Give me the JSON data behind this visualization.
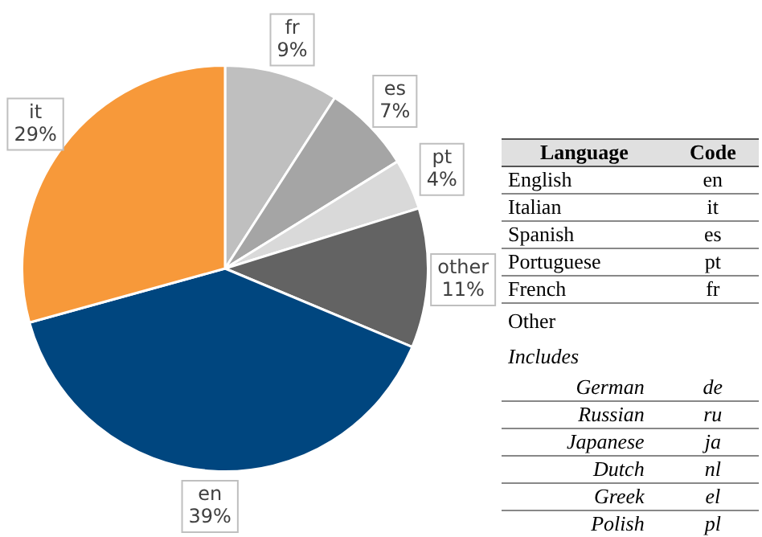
{
  "chart_data": [
    {
      "type": "pie",
      "categories": [
        "fr",
        "es",
        "pt",
        "other",
        "en",
        "it"
      ],
      "values": [
        9,
        7,
        4,
        11,
        39,
        29
      ],
      "value_labels": [
        "9%",
        "7%",
        "4%",
        "11%",
        "39%",
        "29%"
      ],
      "colors": [
        "#bfbfbf",
        "#a5a5a5",
        "#d9d9d9",
        "#636363",
        "#00467f",
        "#f7993a"
      ]
    },
    {
      "type": "other",
      "categories": [
        "Language",
        "Code"
      ],
      "cell_labels": [
        [
          "English",
          "en"
        ],
        [
          "Italian",
          "it"
        ],
        [
          "Spanish",
          "es"
        ],
        [
          "Portuguese",
          "pt"
        ],
        [
          "French",
          "fr"
        ],
        [
          "Other",
          null
        ],
        [
          "Includes",
          null
        ],
        [
          "German",
          "de"
        ],
        [
          "Russian",
          "ru"
        ],
        [
          "Japanese",
          "ja"
        ],
        [
          "Dutch",
          "nl"
        ],
        [
          "Greek",
          "el"
        ],
        [
          "Polish",
          "pl"
        ]
      ]
    }
  ]
}
